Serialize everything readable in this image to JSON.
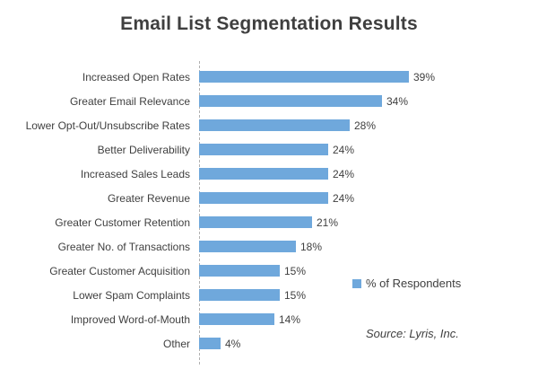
{
  "chart_data": {
    "type": "bar",
    "orientation": "horizontal",
    "title": "Email List Segmentation Results",
    "categories": [
      "Increased Open Rates",
      "Greater Email Relevance",
      "Lower Opt-Out/Unsubscribe Rates",
      "Better Deliverability",
      "Increased Sales Leads",
      "Greater Revenue",
      "Greater Customer Retention",
      "Greater No. of Transactions",
      "Greater Customer Acquisition",
      "Lower Spam Complaints",
      "Improved Word-of-Mouth",
      "Other"
    ],
    "values": [
      39,
      34,
      28,
      24,
      24,
      24,
      21,
      18,
      15,
      15,
      14,
      4
    ],
    "value_labels": [
      "39%",
      "34%",
      "28%",
      "24%",
      "24%",
      "24%",
      "21%",
      "18%",
      "15%",
      "15%",
      "14%",
      "4%"
    ],
    "legend": "% of Respondents",
    "source": "Source: Lyris, Inc.",
    "xlabel": "",
    "ylabel": "",
    "xlim": [
      0,
      45
    ],
    "grid": "off",
    "baseline": "dashed-vertical",
    "legend_position": "right",
    "bar_color": "#6FA8DC",
    "text_color": "#3F3F3F"
  }
}
